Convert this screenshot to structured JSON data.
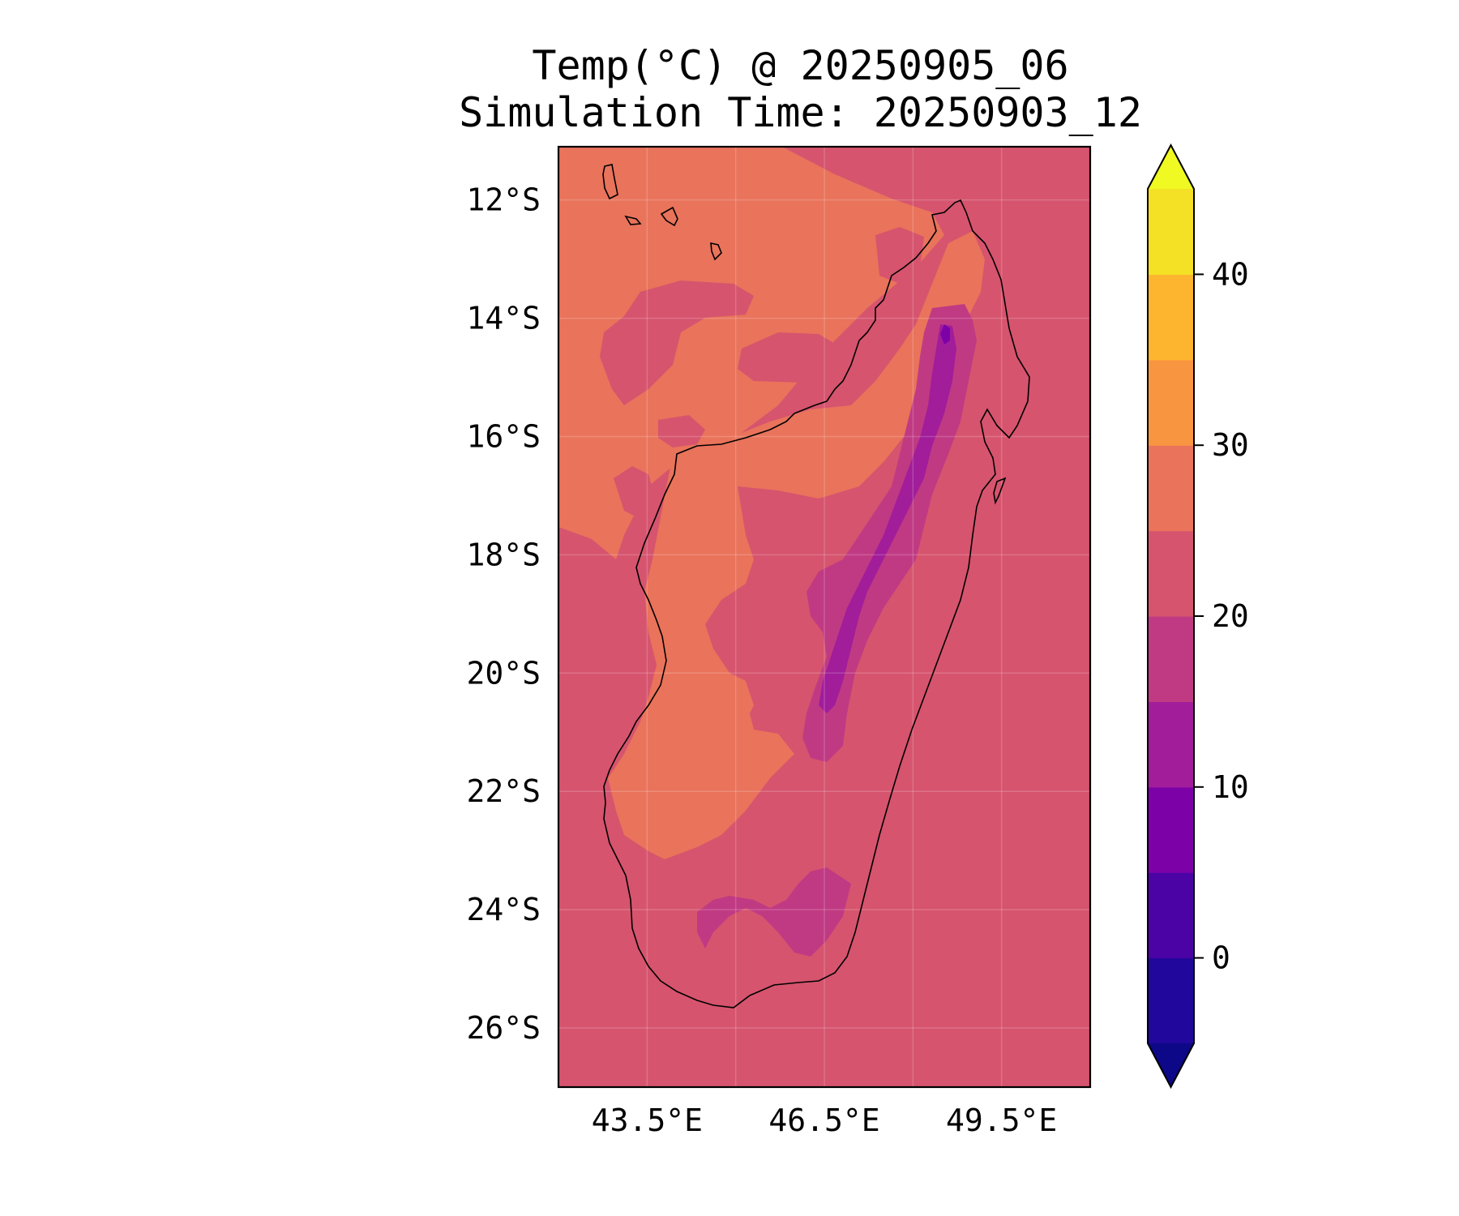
{
  "title": {
    "line1": "Temp(°C) @ 20250905_06",
    "line2": "Simulation Time: 20250903_12"
  },
  "map": {
    "region": "Madagascar",
    "lon_range": [
      42.0,
      51.0
    ],
    "lat_range": [
      -27.0,
      -11.1
    ],
    "x_tick_labels": [
      "43.5°E",
      "46.5°E",
      "49.5°E"
    ],
    "y_tick_labels": [
      "12°S",
      "14°S",
      "16°S",
      "18°S",
      "20°S",
      "22°S",
      "24°S",
      "26°S"
    ],
    "ocean_level_color": "#d6546e",
    "land_border_color": "#000000",
    "gridlines": true
  },
  "colorbar": {
    "tick_labels": [
      "0",
      "10",
      "20",
      "30",
      "40"
    ],
    "tick_values": [
      0,
      10,
      20,
      30,
      40
    ],
    "bounds": [
      -5,
      0,
      5,
      10,
      15,
      20,
      25,
      30,
      35,
      40,
      45
    ],
    "colors": [
      "#21079b",
      "#4b03a6",
      "#7c02a8",
      "#a11d9a",
      "#c03a83",
      "#d6546e",
      "#e9735b",
      "#f89540",
      "#fdb52f",
      "#f4e024"
    ],
    "under_color": "#0d0887",
    "over_color": "#f0f921",
    "extend": "both"
  }
}
